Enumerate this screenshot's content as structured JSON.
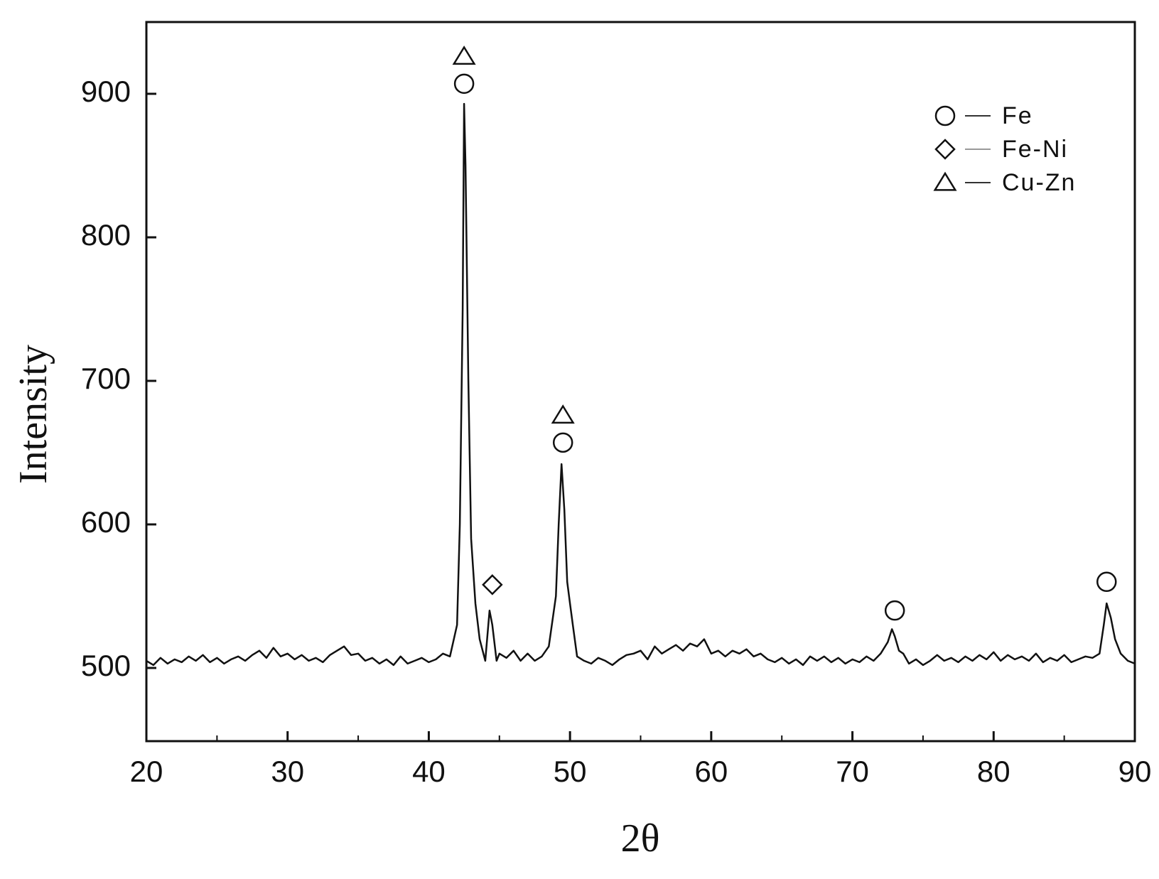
{
  "chart_data": {
    "type": "line",
    "xlabel": "2θ",
    "ylabel": "Intensity",
    "xlim": [
      20,
      90
    ],
    "ylim": [
      449,
      950
    ],
    "xticks": [
      20,
      30,
      40,
      50,
      60,
      70,
      80,
      90
    ],
    "xminor": [
      25,
      35,
      45,
      55,
      65,
      75,
      85
    ],
    "yticks": [
      500,
      600,
      700,
      800,
      900
    ],
    "color": "#111111",
    "x": [
      20,
      20.5,
      21,
      21.5,
      22,
      22.5,
      23,
      23.5,
      24,
      24.5,
      25,
      25.5,
      26,
      26.5,
      27,
      27.5,
      28,
      28.5,
      29,
      29.5,
      30,
      30.5,
      31,
      31.5,
      32,
      32.5,
      33,
      33.5,
      34,
      34.5,
      35,
      35.5,
      36,
      36.5,
      37,
      37.5,
      38,
      38.5,
      39,
      39.5,
      40,
      40.5,
      41,
      41.5,
      42,
      42.2,
      42.4,
      42.5,
      42.6,
      42.8,
      43,
      43.3,
      43.6,
      44,
      44.3,
      44.5,
      44.8,
      45,
      45.5,
      46,
      46.5,
      47,
      47.5,
      48,
      48.5,
      49,
      49.2,
      49.4,
      49.6,
      49.8,
      50,
      50.2,
      50.5,
      51,
      51.5,
      52,
      52.5,
      53,
      53.5,
      54,
      54.5,
      55,
      55.5,
      56,
      56.5,
      57,
      57.5,
      58,
      58.5,
      59,
      59.5,
      60,
      60.5,
      61,
      61.5,
      62,
      62.5,
      63,
      63.5,
      64,
      64.5,
      65,
      65.5,
      66,
      66.5,
      67,
      67.5,
      68,
      68.5,
      69,
      69.5,
      70,
      70.5,
      71,
      71.5,
      72,
      72.5,
      72.8,
      73,
      73.3,
      73.6,
      74,
      74.5,
      75,
      75.5,
      76,
      76.5,
      77,
      77.5,
      78,
      78.5,
      79,
      79.5,
      80,
      80.5,
      81,
      81.5,
      82,
      82.5,
      83,
      83.5,
      84,
      84.5,
      85,
      85.5,
      86,
      86.5,
      87,
      87.5,
      87.8,
      88,
      88.3,
      88.6,
      89,
      89.5,
      90
    ],
    "values": [
      505,
      502,
      507,
      503,
      506,
      504,
      508,
      505,
      509,
      504,
      507,
      503,
      506,
      508,
      505,
      509,
      512,
      507,
      514,
      508,
      510,
      506,
      509,
      505,
      507,
      504,
      509,
      512,
      515,
      509,
      510,
      505,
      507,
      503,
      506,
      502,
      508,
      503,
      505,
      507,
      504,
      506,
      510,
      508,
      530,
      600,
      750,
      893,
      850,
      700,
      590,
      545,
      520,
      505,
      540,
      530,
      505,
      510,
      507,
      512,
      505,
      510,
      505,
      508,
      515,
      550,
      600,
      642,
      610,
      560,
      545,
      530,
      508,
      505,
      503,
      507,
      505,
      502,
      506,
      509,
      510,
      512,
      506,
      515,
      510,
      513,
      516,
      512,
      517,
      515,
      520,
      510,
      512,
      508,
      512,
      510,
      513,
      508,
      510,
      506,
      504,
      507,
      503,
      506,
      502,
      508,
      505,
      508,
      504,
      507,
      503,
      506,
      504,
      508,
      505,
      510,
      518,
      527,
      522,
      512,
      510,
      503,
      506,
      502,
      505,
      509,
      505,
      507,
      504,
      508,
      505,
      509,
      506,
      511,
      505,
      509,
      506,
      508,
      505,
      510,
      504,
      507,
      505,
      509,
      504,
      506,
      508,
      507,
      510,
      530,
      545,
      535,
      520,
      510,
      505,
      503
    ],
    "markers": [
      {
        "name": "Fe",
        "symbol": "circle",
        "x": [
          42.5,
          49.5,
          73,
          88
        ],
        "y": [
          907,
          657,
          540,
          560
        ]
      },
      {
        "name": "Fe-Ni",
        "symbol": "diamond",
        "x": [
          44.5
        ],
        "y": [
          558
        ]
      },
      {
        "name": "Cu-Zn",
        "symbol": "triangle",
        "x": [
          42.5,
          49.5
        ],
        "y": [
          926,
          676
        ]
      }
    ]
  }
}
